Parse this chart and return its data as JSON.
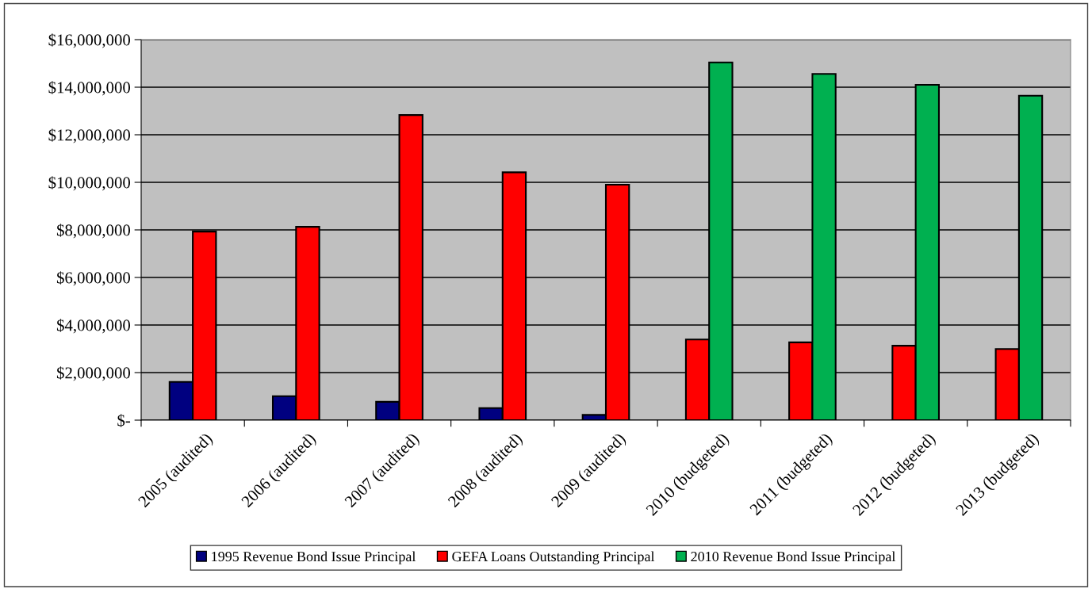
{
  "chart_data": {
    "type": "bar",
    "categories": [
      "2005 (audited)",
      "2006 (audited)",
      "2007 (audited)",
      "2008 (audited)",
      "2009 (audited)",
      "2010 (budgeted)",
      "2011 (budgeted)",
      "2012 (budgeted)",
      "2013 (budgeted)"
    ],
    "series": [
      {
        "name": "1995 Revenue Bond Issue Principal",
        "color": "#000080",
        "values": [
          1610000,
          1010000,
          770000,
          510000,
          220000,
          null,
          null,
          null,
          null
        ]
      },
      {
        "name": "GEFA Loans Outstanding Principal",
        "color": "#ff0000",
        "values": [
          7930000,
          8130000,
          12830000,
          10420000,
          9900000,
          3390000,
          3270000,
          3130000,
          2990000
        ]
      },
      {
        "name": "2010 Revenue Bond Issue Principal",
        "color": "#00b050",
        "values": [
          null,
          null,
          null,
          null,
          null,
          15040000,
          14560000,
          14100000,
          13640000
        ]
      }
    ],
    "ylim": [
      0,
      16000000
    ],
    "yticks": [
      {
        "value": 0,
        "label": "$-"
      },
      {
        "value": 2000000,
        "label": "$2,000,000"
      },
      {
        "value": 4000000,
        "label": "$4,000,000"
      },
      {
        "value": 6000000,
        "label": "$6,000,000"
      },
      {
        "value": 8000000,
        "label": "$8,000,000"
      },
      {
        "value": 10000000,
        "label": "$10,000,000"
      },
      {
        "value": 12000000,
        "label": "$12,000,000"
      },
      {
        "value": 14000000,
        "label": "$14,000,000"
      },
      {
        "value": 16000000,
        "label": "$16,000,000"
      }
    ],
    "grid": "y",
    "legend": "bottom"
  }
}
